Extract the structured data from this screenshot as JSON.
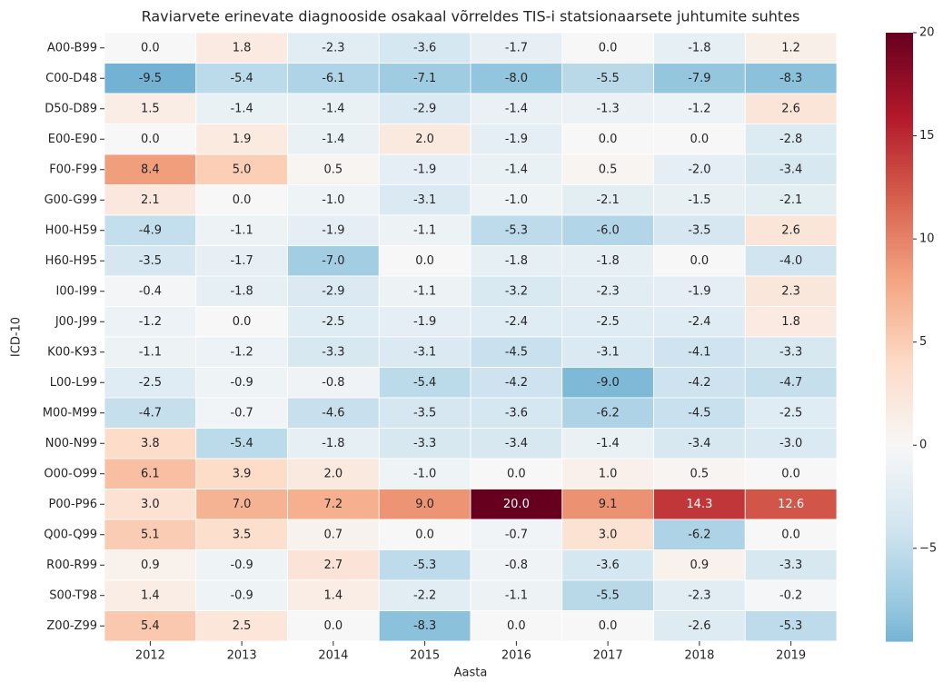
{
  "chart_data": {
    "type": "heatmap",
    "title": "Raviarvete erinevate diagnooside osakaal võrreldes TIS-i statsionaarsete juhtumite suhtes",
    "xlabel": "Aasta",
    "ylabel": "ICD-10",
    "x_categories": [
      "2012",
      "2013",
      "2014",
      "2015",
      "2016",
      "2017",
      "2018",
      "2019"
    ],
    "y_categories": [
      "A00-B99",
      "C00-D48",
      "D50-D89",
      "E00-E90",
      "F00-F99",
      "G00-G99",
      "H00-H59",
      "H60-H95",
      "I00-I99",
      "J00-J99",
      "K00-K93",
      "L00-L99",
      "M00-M99",
      "N00-N99",
      "O00-O99",
      "P00-P96",
      "Q00-Q99",
      "R00-R99",
      "S00-T98",
      "Z00-Z99"
    ],
    "values": [
      [
        0.0,
        1.8,
        -2.3,
        -3.6,
        -1.7,
        0.0,
        -1.8,
        1.2
      ],
      [
        -9.5,
        -5.4,
        -6.1,
        -7.1,
        -8.0,
        -5.5,
        -7.9,
        -8.3
      ],
      [
        1.5,
        -1.4,
        -1.4,
        -2.9,
        -1.4,
        -1.3,
        -1.2,
        2.6
      ],
      [
        0.0,
        1.9,
        -1.4,
        2.0,
        -1.9,
        0.0,
        0.0,
        -2.8
      ],
      [
        8.4,
        5.0,
        0.5,
        -1.9,
        -1.4,
        0.5,
        -2.0,
        -3.4
      ],
      [
        2.1,
        0.0,
        -1.0,
        -3.1,
        -1.0,
        -2.1,
        -1.5,
        -2.1
      ],
      [
        -4.9,
        -1.1,
        -1.9,
        -1.1,
        -5.3,
        -6.0,
        -3.5,
        2.6
      ],
      [
        -3.5,
        -1.7,
        -7.0,
        0.0,
        -1.8,
        -1.8,
        0.0,
        -4.0
      ],
      [
        -0.4,
        -1.8,
        -2.9,
        -1.1,
        -3.2,
        -2.3,
        -1.9,
        2.3
      ],
      [
        -1.2,
        0.0,
        -2.5,
        -1.9,
        -2.4,
        -2.5,
        -2.4,
        1.8
      ],
      [
        -1.1,
        -1.2,
        -3.3,
        -3.1,
        -4.5,
        -3.1,
        -4.1,
        -3.3
      ],
      [
        -2.5,
        -0.9,
        -0.8,
        -5.4,
        -4.2,
        -9.0,
        -4.2,
        -4.7
      ],
      [
        -4.7,
        -0.7,
        -4.6,
        -3.5,
        -3.6,
        -6.2,
        -4.5,
        -2.5
      ],
      [
        3.8,
        -5.4,
        -1.8,
        -3.3,
        -3.4,
        -1.4,
        -3.4,
        -3.0
      ],
      [
        6.1,
        3.9,
        2.0,
        -1.0,
        0.0,
        1.0,
        0.5,
        0.0
      ],
      [
        3.0,
        7.0,
        7.2,
        9.0,
        20.0,
        9.1,
        14.3,
        12.6
      ],
      [
        5.1,
        3.5,
        0.7,
        0.0,
        -0.7,
        3.0,
        -6.2,
        0.0
      ],
      [
        0.9,
        -0.9,
        2.7,
        -5.3,
        -0.8,
        -3.6,
        0.9,
        -3.3
      ],
      [
        1.4,
        -0.9,
        1.4,
        -2.2,
        -1.1,
        -5.5,
        -2.3,
        -0.2
      ],
      [
        5.4,
        2.5,
        0.0,
        -8.3,
        0.0,
        0.0,
        -2.6,
        -5.3
      ]
    ],
    "value_labels": [
      [
        "0.0",
        "1.8",
        "-2.3",
        "-3.6",
        "-1.7",
        "0.0",
        "-1.8",
        "1.2"
      ],
      [
        "-9.5",
        "-5.4",
        "-6.1",
        "-7.1",
        "-8.0",
        "-5.5",
        "-7.9",
        "-8.3"
      ],
      [
        "1.5",
        "-1.4",
        "-1.4",
        "-2.9",
        "-1.4",
        "-1.3",
        "-1.2",
        "2.6"
      ],
      [
        "0.0",
        "1.9",
        "-1.4",
        "2.0",
        "-1.9",
        "0.0",
        "0.0",
        "-2.8"
      ],
      [
        "8.4",
        "5.0",
        "0.5",
        "-1.9",
        "-1.4",
        "0.5",
        "-2.0",
        "-3.4"
      ],
      [
        "2.1",
        "0.0",
        "-1.0",
        "-3.1",
        "-1.0",
        "-2.1",
        "-1.5",
        "-2.1"
      ],
      [
        "-4.9",
        "-1.1",
        "-1.9",
        "-1.1",
        "-5.3",
        "-6.0",
        "-3.5",
        "2.6"
      ],
      [
        "-3.5",
        "-1.7",
        "-7.0",
        "0.0",
        "-1.8",
        "-1.8",
        "0.0",
        "-4.0"
      ],
      [
        "-0.4",
        "-1.8",
        "-2.9",
        "-1.1",
        "-3.2",
        "-2.3",
        "-1.9",
        "2.3"
      ],
      [
        "-1.2",
        "0.0",
        "-2.5",
        "-1.9",
        "-2.4",
        "-2.5",
        "-2.4",
        "1.8"
      ],
      [
        "-1.1",
        "-1.2",
        "-3.3",
        "-3.1",
        "-4.5",
        "-3.1",
        "-4.1",
        "-3.3"
      ],
      [
        "-2.5",
        "-0.9",
        "-0.8",
        "-5.4",
        "-4.2",
        "-9.0",
        "-4.2",
        "-4.7"
      ],
      [
        "-4.7",
        "-0.7",
        "-4.6",
        "-3.5",
        "-3.6",
        "-6.2",
        "-4.5",
        "-2.5"
      ],
      [
        "3.8",
        "-5.4",
        "-1.8",
        "-3.3",
        "-3.4",
        "-1.4",
        "-3.4",
        "-3.0"
      ],
      [
        "6.1",
        "3.9",
        "2.0",
        "-1.0",
        "0.0",
        "1.0",
        "0.5",
        "0.0"
      ],
      [
        "3.0",
        "7.0",
        "7.2",
        "9.0",
        "20.0",
        "9.1",
        "14.3",
        "12.6"
      ],
      [
        "5.1",
        "3.5",
        "0.7",
        "0.0",
        "-0.7",
        "3.0",
        "-6.2",
        "0.0"
      ],
      [
        "0.9",
        "-0.9",
        "2.7",
        "-5.3",
        "-0.8",
        "-3.6",
        "0.9",
        "-3.3"
      ],
      [
        "1.4",
        "-0.9",
        "1.4",
        "-2.2",
        "-1.1",
        "-5.5",
        "-2.3",
        "-0.2"
      ],
      [
        "5.4",
        "2.5",
        "0.0",
        "-8.3",
        "0.0",
        "0.0",
        "-2.6",
        "-5.3"
      ]
    ],
    "colormap": "RdBu_r",
    "center": 0,
    "clim": [
      -9.5,
      20
    ],
    "cticks": [
      {
        "value": -5,
        "label": "−5"
      },
      0,
      5,
      10,
      15,
      20
    ]
  }
}
